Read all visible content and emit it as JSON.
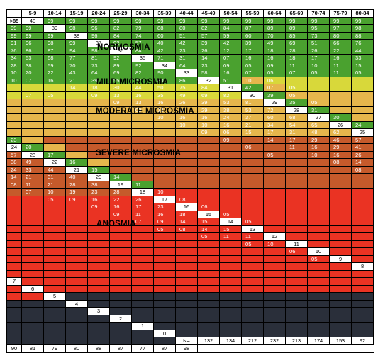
{
  "columns": [
    "5-9",
    "10-14",
    "15-19",
    "20-24",
    "25-29",
    "30-34",
    "35-39",
    "40-44",
    "45-49",
    "50-54",
    "55-59",
    "60-64",
    "65-69",
    "70-74",
    "75-79",
    "80-84",
    ">85"
  ],
  "n_label": "N=",
  "n_values": [
    "132",
    "134",
    "212",
    "232",
    "213",
    "174",
    "153",
    "92",
    "90",
    "81",
    "79",
    "80",
    "88",
    "87",
    "77",
    "87",
    "98"
  ],
  "zones": {
    "normosmia": "NORMOSMIA",
    "mild": "MILD MICROSMIA",
    "moderate": "MODERATE MICROSMIA",
    "severe": "SEVERE MICROSMIA",
    "anosmia": "ANOSMIA"
  },
  "colors": {
    "normosmia": "#4aa12f",
    "mild": "#d8d83a",
    "moderate": "#e6b64c",
    "severe": "#c55a2b",
    "anosmia": "#ea3323",
    "floor": "#2a2f3a"
  },
  "rows": [
    {
      "score": "40",
      "cells": [
        "99",
        "99",
        "99",
        "99",
        "99",
        "99",
        "99",
        "99",
        "99",
        "99",
        "99",
        "99",
        "99",
        "99",
        "99",
        "99",
        "99"
      ]
    },
    {
      "score": "39",
      "cells": [
        "98",
        "96",
        "82",
        "79",
        "88",
        "80",
        "82",
        "84",
        "87",
        "89",
        "89",
        "95",
        "97",
        "98",
        "99",
        "99",
        "99"
      ]
    },
    {
      "score": "38",
      "cells": [
        "96",
        "84",
        "74",
        "60",
        "51",
        "57",
        "59",
        "60",
        "70",
        "85",
        "73",
        "80",
        "88",
        "91",
        "96",
        "98",
        "99"
      ]
    },
    {
      "score": "37",
      "cells": [
        "92",
        "57",
        "40",
        "42",
        "39",
        "42",
        "39",
        "49",
        "69",
        "51",
        "66",
        "76",
        "76",
        "86",
        "87",
        "94",
        "98"
      ]
    },
    {
      "score": "36",
      "cells": [
        "84",
        "42",
        "23",
        "26",
        "12",
        "17",
        "18",
        "28",
        "26",
        "22",
        "44",
        "34",
        "53",
        "68",
        "77",
        "81",
        "92"
      ]
    },
    {
      "score": "35",
      "cells": [
        "71",
        "31",
        "14",
        "07",
        "16",
        "16",
        "18",
        "17",
        "16",
        "33",
        "28",
        "38",
        "59",
        "70",
        "73",
        "89",
        "92"
      ]
    },
    {
      "score": "34",
      "cells": [
        "64",
        "23",
        "09",
        "05",
        "09",
        "11",
        "10",
        "11",
        "15",
        "10",
        "20",
        "22",
        "43",
        "64",
        "69",
        "82",
        "90"
      ]
    },
    {
      "score": "33",
      "cells": [
        "58",
        "16",
        "07",
        "05",
        "07",
        "05",
        "11",
        "05",
        "10",
        "07",
        "16",
        "21",
        "39",
        "55",
        "57",
        "80",
        "86"
      ]
    },
    {
      "score": "32",
      "cells": [
        "51",
        "10",
        "06",
        "",
        "",
        "",
        "",
        "",
        "",
        "",
        "14",
        "18",
        "30",
        "44",
        "50",
        "75",
        "84"
      ]
    },
    {
      "score": "31",
      "cells": [
        "42",
        "07",
        "05",
        "",
        "",
        "",
        "",
        "07",
        "05",
        "",
        "09",
        "13",
        "16",
        "35",
        "49",
        "69",
        "82"
      ]
    },
    {
      "score": "30",
      "cells": [
        "39",
        "05",
        "",
        "",
        "",
        "",
        "",
        "",
        "",
        "",
        "09",
        "13",
        "16",
        "26",
        "39",
        "53",
        "81"
      ]
    },
    {
      "score": "29",
      "cells": [
        "35",
        "05",
        "",
        "",
        "",
        "",
        "",
        "",
        "",
        "",
        "09",
        "13",
        "18",
        "29",
        "38",
        "53",
        "72"
      ]
    },
    {
      "score": "28",
      "cells": [
        "31",
        "",
        "",
        "",
        "",
        "",
        "",
        "",
        "",
        "",
        "10",
        "16",
        "16",
        "24",
        "37",
        "60",
        "68"
      ]
    },
    {
      "score": "27",
      "cells": [
        "30",
        "",
        "",
        "",
        "",
        "",
        "",
        "",
        "",
        "",
        "10",
        "10",
        "16",
        "21",
        "34",
        "54",
        "65"
      ]
    },
    {
      "score": "26",
      "cells": [
        "24",
        "",
        "",
        "",
        "",
        "",
        "",
        "",
        "",
        "",
        "09",
        "06",
        "15",
        "17",
        "31",
        "48",
        "62"
      ]
    },
    {
      "score": "25",
      "cells": [
        "23",
        "",
        "",
        "",
        "",
        "",
        "",
        "",
        "",
        "",
        "09",
        "",
        "14",
        "17",
        "29",
        "46",
        "57"
      ]
    },
    {
      "score": "24",
      "cells": [
        "20",
        "",
        "",
        "",
        "",
        "",
        "",
        "",
        "",
        "",
        "06",
        "",
        "11",
        "16",
        "29",
        "41",
        "57"
      ]
    },
    {
      "score": "23",
      "cells": [
        "17",
        "",
        "",
        "",
        "",
        "",
        "",
        "",
        "",
        "",
        "05",
        "",
        "10",
        "16",
        "26",
        "38",
        "49"
      ]
    },
    {
      "score": "22",
      "cells": [
        "16",
        "",
        "",
        "",
        "",
        "",
        "",
        "",
        "",
        "",
        "",
        "",
        "08",
        "14",
        "24",
        "33",
        "44"
      ]
    },
    {
      "score": "21",
      "cells": [
        "15",
        "",
        "",
        "",
        "",
        "",
        "",
        "",
        "",
        "",
        "",
        "",
        "08",
        "14",
        "21",
        "31",
        "40"
      ]
    },
    {
      "score": "20",
      "cells": [
        "14",
        "",
        "",
        "",
        "",
        "",
        "",
        "",
        "",
        "",
        "",
        "",
        "08",
        "11",
        "21",
        "28",
        "38"
      ]
    },
    {
      "score": "19",
      "cells": [
        "11",
        "",
        "",
        "",
        "",
        "",
        "",
        "",
        "",
        "",
        "",
        "",
        "07",
        "10",
        "19",
        "23",
        "28"
      ]
    },
    {
      "score": "18",
      "cells": [
        "10",
        "",
        "",
        "",
        "",
        "",
        "",
        "",
        "",
        "",
        "",
        "",
        "05",
        "09",
        "16",
        "22",
        "26"
      ]
    },
    {
      "score": "17",
      "cells": [
        "08",
        "",
        "",
        "",
        "",
        "",
        "",
        "",
        "",
        "",
        "",
        "",
        "",
        "09",
        "16",
        "17",
        "23"
      ]
    },
    {
      "score": "16",
      "cells": [
        "06",
        "",
        "",
        "",
        "",
        "",
        "",
        "",
        "",
        "",
        "",
        "",
        "",
        "09",
        "11",
        "16",
        "18"
      ]
    },
    {
      "score": "15",
      "cells": [
        "05",
        "",
        "",
        "",
        "",
        "",
        "",
        "",
        "",
        "",
        "",
        "",
        "",
        "07",
        "09",
        "14",
        "15"
      ]
    },
    {
      "score": "14",
      "cells": [
        "05",
        "",
        "",
        "",
        "",
        "",
        "",
        "",
        "",
        "",
        "",
        "",
        "",
        "05",
        "08",
        "14",
        "15"
      ]
    },
    {
      "score": "13",
      "cells": [
        "",
        "",
        "",
        "",
        "",
        "",
        "",
        "",
        "",
        "",
        "",
        "",
        "",
        "",
        "05",
        "11",
        "11"
      ]
    },
    {
      "score": "12",
      "cells": [
        "",
        "",
        "",
        "",
        "",
        "",
        "",
        "",
        "",
        "",
        "",
        "",
        "",
        "",
        "",
        "05",
        "10"
      ]
    },
    {
      "score": "11",
      "cells": [
        "",
        "",
        "",
        "",
        "",
        "",
        "",
        "",
        "",
        "",
        "",
        "",
        "",
        "",
        "",
        "",
        "06"
      ]
    },
    {
      "score": "10",
      "cells": [
        "",
        "",
        "",
        "",
        "",
        "",
        "",
        "",
        "",
        "",
        "",
        "",
        "",
        "",
        "",
        "",
        "05"
      ]
    },
    {
      "score": "9",
      "cells": [
        "",
        "",
        "",
        "",
        "",
        "",
        "",
        "",
        "",
        "",
        "",
        "",
        "",
        "",
        "",
        "",
        ""
      ]
    },
    {
      "score": "8",
      "cells": [
        "",
        "",
        "",
        "",
        "",
        "",
        "",
        "",
        "",
        "",
        "",
        "",
        "",
        "",
        "",
        "",
        ""
      ]
    },
    {
      "score": "7",
      "cells": [
        "",
        "",
        "",
        "",
        "",
        "",
        "",
        "",
        "",
        "",
        "",
        "",
        "",
        "",
        "",
        "",
        ""
      ]
    },
    {
      "score": "6",
      "cells": [
        "",
        "",
        "",
        "",
        "",
        "",
        "",
        "",
        "",
        "",
        "",
        "",
        "",
        "",
        "",
        "",
        ""
      ]
    },
    {
      "score": "5",
      "cells": [
        "",
        "",
        "",
        "",
        "",
        "",
        "",
        "",
        "",
        "",
        "",
        "",
        "",
        "",
        "",
        "",
        ""
      ]
    },
    {
      "score": "4",
      "cells": [
        "",
        "",
        "",
        "",
        "",
        "",
        "",
        "",
        "",
        "",
        "",
        "",
        "",
        "",
        "",
        "",
        ""
      ]
    },
    {
      "score": "3",
      "cells": [
        "",
        "",
        "",
        "",
        "",
        "",
        "",
        "",
        "",
        "",
        "",
        "",
        "",
        "",
        "",
        "",
        ""
      ]
    },
    {
      "score": "2",
      "cells": [
        "",
        "",
        "",
        "",
        "",
        "",
        "",
        "",
        "",
        "",
        "",
        "",
        "",
        "",
        "",
        "",
        ""
      ]
    },
    {
      "score": "1",
      "cells": [
        "",
        "",
        "",
        "",
        "",
        "",
        "",
        "",
        "",
        "",
        "",
        "",
        "",
        "",
        "",
        "",
        ""
      ]
    },
    {
      "score": "0",
      "cells": [
        "",
        "",
        "",
        "",
        "",
        "",
        "",
        "",
        "",
        "",
        "",
        "",
        "",
        "",
        "",
        "",
        ""
      ]
    }
  ]
}
